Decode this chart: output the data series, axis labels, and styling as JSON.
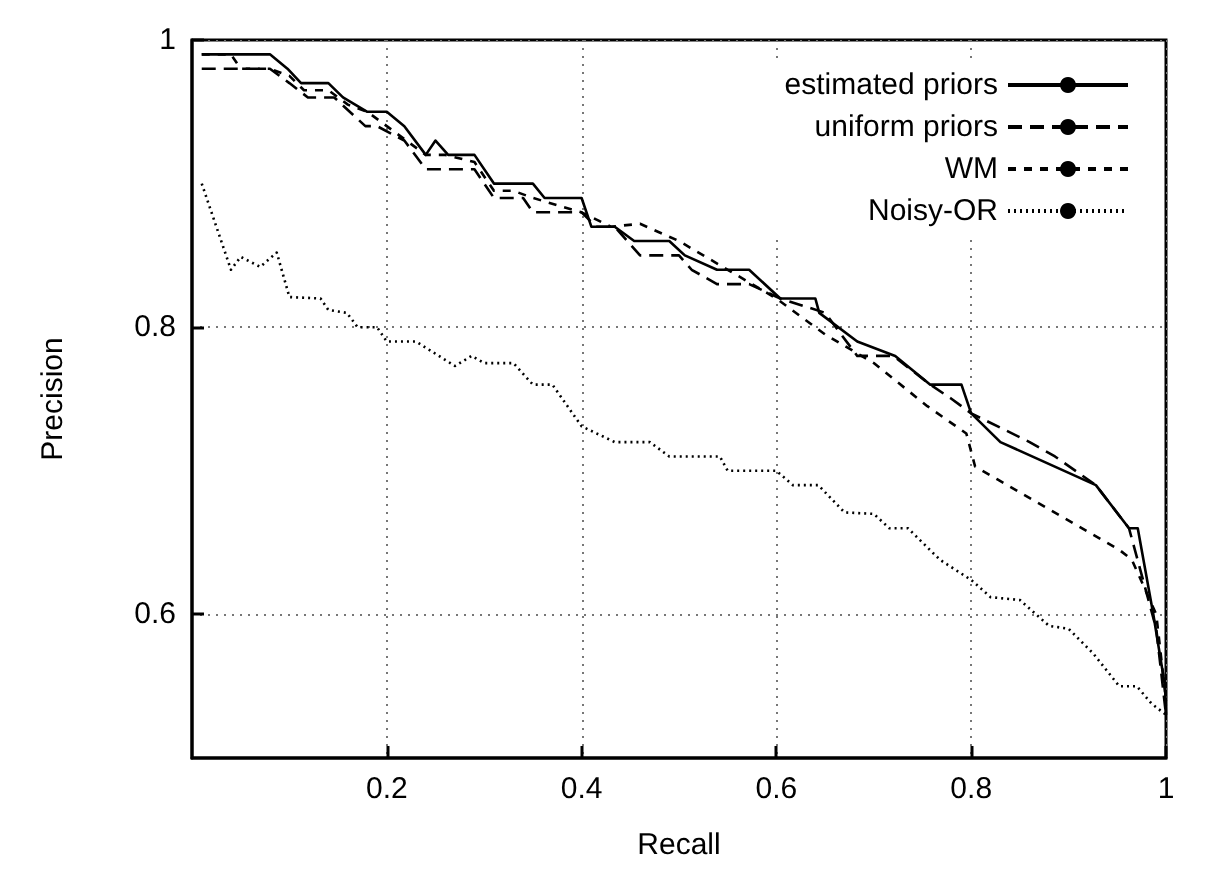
{
  "chart_data": {
    "type": "line",
    "xlabel": "Recall",
    "ylabel": "Precision",
    "xlim": [
      0,
      1
    ],
    "ylim": [
      0.5,
      1
    ],
    "xticks": [
      0.2,
      0.4,
      0.6,
      0.8,
      1
    ],
    "yticks": [
      0.6,
      0.8,
      1
    ],
    "grid": true,
    "legend": "top right",
    "series": [
      {
        "name": "estimated priors",
        "color": "#000000",
        "line_style": "solid",
        "x": [
          0.01,
          0.08,
          0.098,
          0.112,
          0.14,
          0.155,
          0.18,
          0.2,
          0.218,
          0.24,
          0.25,
          0.263,
          0.29,
          0.31,
          0.35,
          0.362,
          0.4,
          0.41,
          0.434,
          0.454,
          0.49,
          0.506,
          0.539,
          0.572,
          0.604,
          0.64,
          0.644,
          0.683,
          0.722,
          0.758,
          0.79,
          0.8,
          0.83,
          0.928,
          0.962,
          0.971,
          0.987,
          0.999,
          1
        ],
        "values": [
          0.99,
          0.99,
          0.98,
          0.97,
          0.97,
          0.96,
          0.95,
          0.95,
          0.94,
          0.92,
          0.93,
          0.92,
          0.92,
          0.9,
          0.9,
          0.89,
          0.89,
          0.87,
          0.87,
          0.86,
          0.86,
          0.85,
          0.84,
          0.84,
          0.82,
          0.82,
          0.81,
          0.79,
          0.78,
          0.76,
          0.76,
          0.74,
          0.72,
          0.69,
          0.66,
          0.66,
          0.6,
          0.55,
          0.53
        ]
      },
      {
        "name": "uniform priors",
        "color": "#000000",
        "line_style": "dashed",
        "x": [
          0.01,
          0.08,
          0.1,
          0.119,
          0.146,
          0.178,
          0.19,
          0.218,
          0.24,
          0.29,
          0.31,
          0.34,
          0.35,
          0.4,
          0.415,
          0.434,
          0.46,
          0.5,
          0.513,
          0.539,
          0.572,
          0.604,
          0.65,
          0.683,
          0.72,
          0.758,
          0.78,
          0.8,
          0.86,
          0.886,
          0.928,
          0.962,
          0.978,
          0.99,
          1
        ],
        "values": [
          0.98,
          0.98,
          0.97,
          0.96,
          0.96,
          0.94,
          0.94,
          0.93,
          0.91,
          0.91,
          0.89,
          0.89,
          0.88,
          0.88,
          0.87,
          0.87,
          0.85,
          0.85,
          0.84,
          0.83,
          0.83,
          0.82,
          0.81,
          0.78,
          0.78,
          0.76,
          0.75,
          0.74,
          0.72,
          0.71,
          0.69,
          0.66,
          0.62,
          0.59,
          0.53
        ]
      },
      {
        "name": "WM",
        "color": "#000000",
        "line_style": "dashed",
        "x": [
          0.01,
          0.04,
          0.05,
          0.08,
          0.1,
          0.115,
          0.14,
          0.16,
          0.18,
          0.2,
          0.22,
          0.24,
          0.26,
          0.29,
          0.31,
          0.33,
          0.35,
          0.4,
          0.43,
          0.46,
          0.5,
          0.55,
          0.6,
          0.65,
          0.7,
          0.755,
          0.795,
          0.804,
          0.827,
          0.952,
          0.965,
          0.99,
          1
        ],
        "values": [
          0.99,
          0.99,
          0.98,
          0.98,
          0.975,
          0.965,
          0.965,
          0.955,
          0.95,
          0.94,
          0.93,
          0.92,
          0.92,
          0.915,
          0.895,
          0.895,
          0.89,
          0.88,
          0.87,
          0.872,
          0.86,
          0.84,
          0.82,
          0.795,
          0.775,
          0.745,
          0.726,
          0.703,
          0.694,
          0.645,
          0.638,
          0.6,
          0.54
        ]
      },
      {
        "name": "Noisy-OR",
        "color": "#000000",
        "line_style": "dotted",
        "x": [
          0.01,
          0.04,
          0.05,
          0.07,
          0.087,
          0.1,
          0.132,
          0.14,
          0.159,
          0.17,
          0.19,
          0.2,
          0.23,
          0.27,
          0.287,
          0.3,
          0.33,
          0.35,
          0.37,
          0.4,
          0.434,
          0.47,
          0.49,
          0.542,
          0.55,
          0.6,
          0.617,
          0.643,
          0.67,
          0.7,
          0.716,
          0.735,
          0.768,
          0.8,
          0.82,
          0.85,
          0.88,
          0.9,
          0.925,
          0.952,
          0.97,
          0.985,
          1
        ],
        "values": [
          0.9,
          0.84,
          0.849,
          0.842,
          0.852,
          0.821,
          0.82,
          0.812,
          0.81,
          0.8,
          0.8,
          0.79,
          0.79,
          0.773,
          0.78,
          0.775,
          0.775,
          0.76,
          0.76,
          0.731,
          0.72,
          0.72,
          0.71,
          0.71,
          0.7,
          0.7,
          0.69,
          0.69,
          0.671,
          0.67,
          0.66,
          0.66,
          0.638,
          0.624,
          0.612,
          0.61,
          0.592,
          0.59,
          0.573,
          0.55,
          0.55,
          0.538,
          0.53
        ]
      }
    ]
  }
}
